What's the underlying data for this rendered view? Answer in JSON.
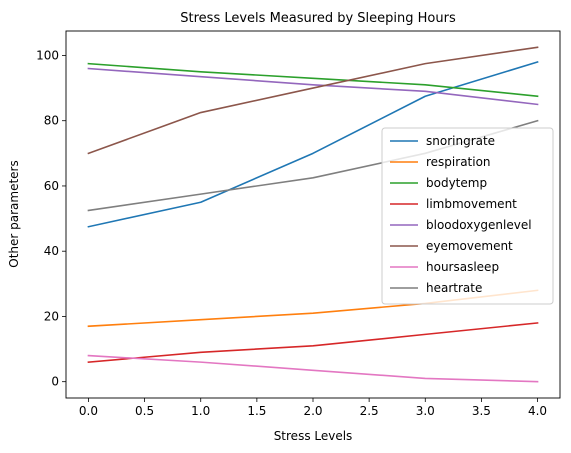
{
  "chart_data": {
    "type": "line",
    "title": "Stress Levels Measured by Sleeping Hours",
    "xlabel": "Stress Levels",
    "ylabel": "Other parameters",
    "x": [
      0,
      1,
      2,
      3,
      4
    ],
    "xlim": [
      -0.2,
      4.2
    ],
    "ylim": [
      -5,
      107.5
    ],
    "xticks": [
      "0.0",
      "0.5",
      "1.0",
      "1.5",
      "2.0",
      "2.5",
      "3.0",
      "3.5",
      "4.0"
    ],
    "xtick_values": [
      0,
      0.5,
      1,
      1.5,
      2,
      2.5,
      3,
      3.5,
      4
    ],
    "yticks": [
      "0",
      "20",
      "40",
      "60",
      "80",
      "100"
    ],
    "ytick_values": [
      0,
      20,
      40,
      60,
      80,
      100
    ],
    "grid": false,
    "legend_position": "center-right",
    "series": [
      {
        "name": "snoringrate",
        "color": "#1f77b4",
        "values": [
          47.5,
          55,
          70,
          87.5,
          98
        ]
      },
      {
        "name": "respiration",
        "color": "#ff7f0e",
        "values": [
          17,
          19,
          21,
          24,
          28
        ]
      },
      {
        "name": "bodytemp",
        "color": "#2ca02c",
        "values": [
          97.5,
          95,
          93,
          91,
          87.5
        ]
      },
      {
        "name": "limbmovement",
        "color": "#d62728",
        "values": [
          6,
          9,
          11,
          14.5,
          18
        ]
      },
      {
        "name": "bloodoxygenlevel",
        "color": "#9467bd",
        "values": [
          96,
          93.5,
          91,
          89,
          85
        ]
      },
      {
        "name": "eyemovement",
        "color": "#8c564b",
        "values": [
          70,
          82.5,
          90,
          97.5,
          102.5
        ]
      },
      {
        "name": "hoursasleep",
        "color": "#e377c2",
        "values": [
          8,
          6,
          3.5,
          1,
          0
        ]
      },
      {
        "name": "heartrate",
        "color": "#7f7f7f",
        "values": [
          52.5,
          57.5,
          62.5,
          70,
          80
        ]
      }
    ]
  }
}
